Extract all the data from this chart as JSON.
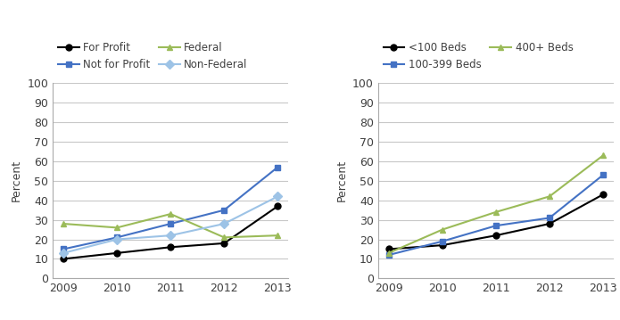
{
  "years": [
    2009,
    2010,
    2011,
    2012,
    2013
  ],
  "chart1": {
    "series": [
      {
        "label": "For Profit",
        "color": "#000000",
        "marker": "o",
        "values": [
          10,
          13,
          16,
          18,
          37
        ]
      },
      {
        "label": "Not for Profit",
        "color": "#4472C4",
        "marker": "s",
        "values": [
          15,
          21,
          28,
          35,
          57
        ]
      },
      {
        "label": "Federal",
        "color": "#9BBB59",
        "marker": "^",
        "values": [
          28,
          26,
          33,
          21,
          22
        ]
      },
      {
        "label": "Non-Federal",
        "color": "#9DC3E6",
        "marker": "D",
        "values": [
          13,
          20,
          22,
          28,
          42
        ]
      }
    ],
    "ylabel": "Percent",
    "ylim": [
      0,
      100
    ],
    "yticks": [
      0,
      10,
      20,
      30,
      40,
      50,
      60,
      70,
      80,
      90,
      100
    ]
  },
  "chart2": {
    "series": [
      {
        "label": "<100 Beds",
        "color": "#000000",
        "marker": "o",
        "values": [
          15,
          17,
          22,
          28,
          43
        ]
      },
      {
        "label": "100-399 Beds",
        "color": "#4472C4",
        "marker": "s",
        "values": [
          12,
          19,
          27,
          31,
          53
        ]
      },
      {
        "label": "400+ Beds",
        "color": "#9BBB59",
        "marker": "^",
        "values": [
          13,
          25,
          34,
          42,
          63
        ]
      }
    ],
    "ylabel": "Percent",
    "ylim": [
      0,
      100
    ],
    "yticks": [
      0,
      10,
      20,
      30,
      40,
      50,
      60,
      70,
      80,
      90,
      100
    ]
  },
  "font_color": "#404040",
  "linewidth": 1.5,
  "markersize": 5,
  "tick_fontsize": 9,
  "ylabel_fontsize": 9,
  "legend_fontsize": 8.5
}
